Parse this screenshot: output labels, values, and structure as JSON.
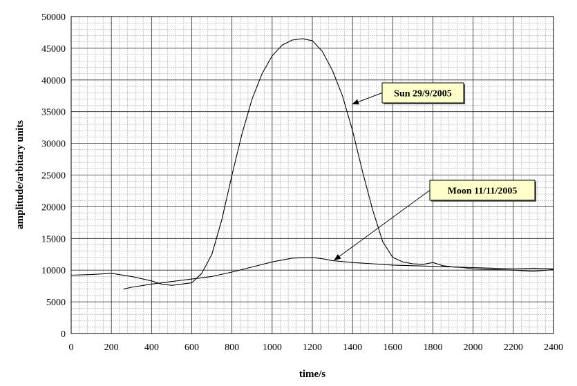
{
  "chart_data": {
    "type": "line",
    "title": "",
    "xlabel": "time/s",
    "ylabel": "amplitude/arbitary units",
    "xlim": [
      0,
      2400
    ],
    "ylim": [
      0,
      50000
    ],
    "x_ticks": [
      "0",
      "200",
      "400",
      "600",
      "800",
      "1000",
      "1200",
      "1400",
      "1600",
      "1800",
      "2000",
      "2200",
      "2400"
    ],
    "y_ticks": [
      "0",
      "5000",
      "10000",
      "15000",
      "20000",
      "25000",
      "30000",
      "35000",
      "40000",
      "45000",
      "50000"
    ],
    "grid": true,
    "legend": "none",
    "series": [
      {
        "name": "Sun 29/9/2005",
        "x": [
          0,
          100,
          200,
          300,
          400,
          450,
          500,
          550,
          600,
          650,
          700,
          750,
          800,
          850,
          900,
          950,
          1000,
          1050,
          1100,
          1150,
          1200,
          1250,
          1300,
          1350,
          1400,
          1450,
          1500,
          1550,
          1600,
          1650,
          1700,
          1750,
          1800,
          1850,
          1900,
          1950,
          2000,
          2100,
          2200,
          2300,
          2400
        ],
        "values": [
          9200,
          9300,
          9500,
          9000,
          8300,
          7800,
          7600,
          7800,
          8000,
          9500,
          12500,
          18000,
          25000,
          31500,
          37000,
          41000,
          43800,
          45500,
          46300,
          46500,
          46200,
          44500,
          41500,
          37500,
          32000,
          25500,
          19500,
          14500,
          12000,
          11300,
          11000,
          10900,
          11200,
          10700,
          10500,
          10400,
          10200,
          10100,
          10000,
          9800,
          10100
        ]
      },
      {
        "name": "Moon 11/11/2005",
        "x": [
          260,
          300,
          400,
          500,
          600,
          700,
          800,
          900,
          1000,
          1100,
          1200,
          1250,
          1300,
          1400,
          1500,
          1600,
          1700,
          1800,
          1900,
          2000,
          2100,
          2200,
          2300,
          2400
        ],
        "values": [
          7000,
          7300,
          7800,
          8200,
          8600,
          9000,
          9700,
          10500,
          11300,
          11900,
          12000,
          11800,
          11500,
          11200,
          11000,
          10800,
          10700,
          10600,
          10500,
          10400,
          10300,
          10200,
          10300,
          10200
        ]
      }
    ],
    "annotations": [
      {
        "text": "Sun 29/9/2005",
        "series": "Sun 29/9/2005",
        "x": 1400,
        "y": 36200
      },
      {
        "text": "Moon 11/11/2005",
        "series": "Moon 11/11/2005",
        "x": 1310,
        "y": 11600
      }
    ]
  }
}
